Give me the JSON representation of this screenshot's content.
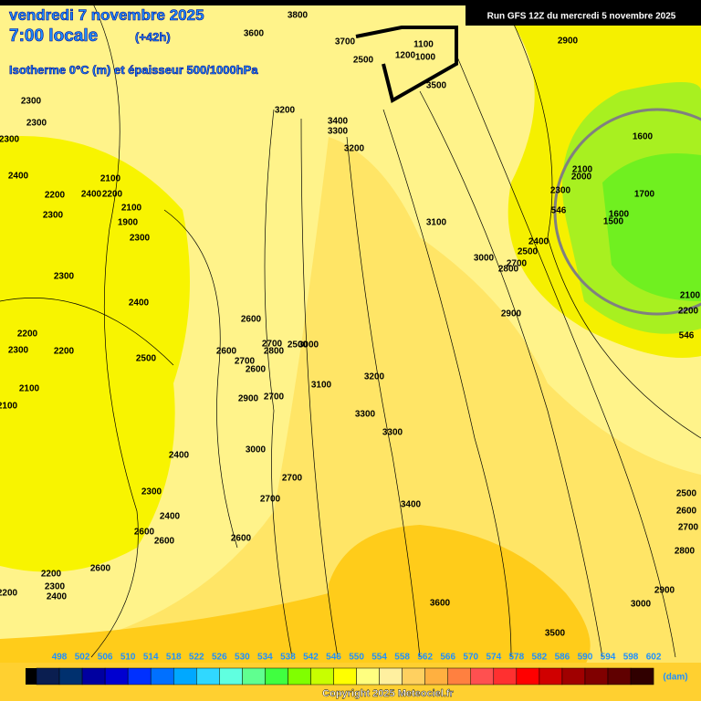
{
  "header": {
    "date": "vendredi 7 novembre 2025",
    "time": "7:00 locale",
    "lead": "(+42h)",
    "subtitle": "Isotherme 0°C (m) et épaisseur 500/1000hPa",
    "run": "Run GFS 12Z du mercredi 5 novembre 2025"
  },
  "contour_labels": [
    "3800",
    "3600",
    "3700",
    "1100",
    "1200",
    "1000",
    "2500",
    "3500",
    "3200",
    "3400",
    "3300",
    "3200",
    "2900",
    "2300",
    "2300",
    "2300",
    "2400",
    "2200",
    "2400",
    "2200",
    "2300",
    "2100",
    "2100",
    "1900",
    "2300",
    "2300",
    "2400",
    "2200",
    "2300",
    "2200",
    "2500",
    "2100",
    "2100",
    "1600",
    "2100",
    "2000",
    "2300",
    "1700",
    "1600",
    "1500",
    "3100",
    "2400",
    "2500",
    "3000",
    "2700",
    "2800",
    "2900",
    "2100",
    "2200",
    "2600",
    "2700",
    "2500",
    "3000",
    "2800",
    "2600",
    "2700",
    "2600",
    "3200",
    "3100",
    "2900",
    "2700",
    "3300",
    "3300",
    "3000",
    "2400",
    "2700",
    "2300",
    "2700",
    "3400",
    "2400",
    "2600",
    "2600",
    "2600",
    "2500",
    "2600",
    "2700",
    "2800",
    "2900",
    "3000",
    "3600",
    "3500",
    "2200",
    "2600",
    "2300",
    "2400",
    "2200",
    "546",
    "546"
  ],
  "legend": {
    "values": [
      498,
      502,
      506,
      510,
      514,
      518,
      522,
      526,
      530,
      534,
      538,
      542,
      546,
      550,
      554,
      558,
      562,
      566,
      570,
      574,
      578,
      582,
      586,
      590,
      594,
      598,
      602
    ],
    "colors": [
      "#0a1e50",
      "#00306e",
      "#0000a0",
      "#0000d0",
      "#0030ff",
      "#0070ff",
      "#00a8ff",
      "#30d8ff",
      "#60ffe0",
      "#60ff90",
      "#40ff40",
      "#80ff00",
      "#c8ff00",
      "#ffff00",
      "#ffff80",
      "#fff0a0",
      "#ffd060",
      "#ffb040",
      "#ff8040",
      "#ff5050",
      "#ff3030",
      "#ff0000",
      "#d00000",
      "#a00000",
      "#800000",
      "#600000",
      "#300000"
    ],
    "unit": "(dam)"
  },
  "footer": {
    "copyright": "Copyright 2025 Meteociel.fr"
  }
}
